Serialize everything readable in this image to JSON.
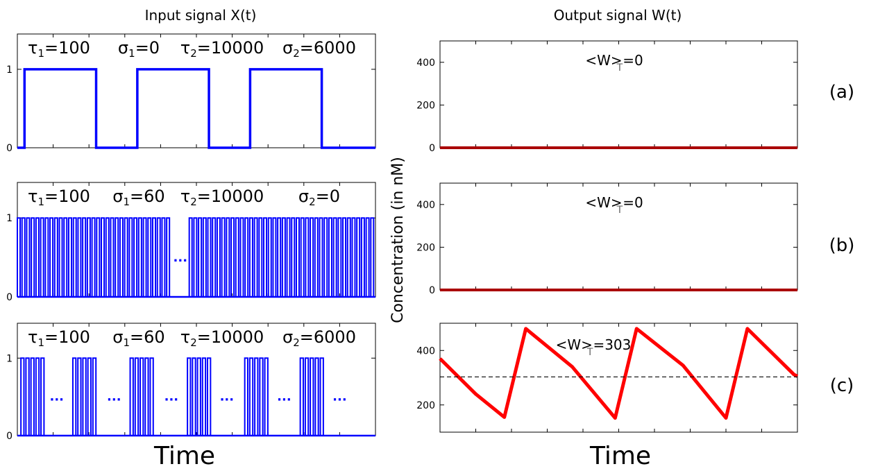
{
  "figure": {
    "left_title": "Input signal X(t)",
    "right_title": "Output signal W(t)",
    "left_xlabel": "Time",
    "right_xlabel": "Time",
    "right_ylabel": "Concentration (in nM)",
    "panel_labels": [
      "(a)",
      "(b)",
      "(c)"
    ],
    "ellipsis": "..."
  },
  "colors": {
    "input_line": "#0000ff",
    "output_flat": "#aa0000",
    "output_sawtooth": "#ff0000",
    "mean_line": "#000000"
  },
  "chart_data": [
    {
      "type": "line",
      "panel": "a",
      "side": "input",
      "params": [
        {
          "sym": "τ",
          "sub": "1",
          "val": "=100"
        },
        {
          "sym": "σ",
          "sub": "1",
          "val": "=0"
        },
        {
          "sym": "τ",
          "sub": "2",
          "val": "=10000"
        },
        {
          "sym": "σ",
          "sub": "2",
          "val": "=6000"
        }
      ],
      "yticks": [
        0,
        1
      ],
      "ylim": [
        0,
        1.45
      ],
      "series": [
        {
          "segments": [
            [
              0.0,
              0.02,
              0
            ],
            [
              0.02,
              0.22,
              1
            ],
            [
              0.22,
              0.335,
              0
            ],
            [
              0.335,
              0.535,
              1
            ],
            [
              0.535,
              0.65,
              0
            ],
            [
              0.65,
              0.85,
              1
            ],
            [
              0.85,
              1.0,
              0
            ]
          ]
        }
      ]
    },
    {
      "type": "line",
      "panel": "b",
      "side": "input",
      "params": [
        {
          "sym": "τ",
          "sub": "1",
          "val": "=100"
        },
        {
          "sym": "σ",
          "sub": "1",
          "val": "=60"
        },
        {
          "sym": "τ",
          "sub": "2",
          "val": "=10000"
        },
        {
          "sym": "σ",
          "sub": "2",
          "val": "=0"
        }
      ],
      "yticks": [
        0,
        1
      ],
      "ylim": [
        0,
        1.45
      ],
      "series": [
        {
          "trains": [
            [
              0.0,
              0.43
            ],
            [
              0.48,
              1.0
            ]
          ],
          "pulse_width_ratio": 0.6,
          "pulses_per_train": [
            33,
            40
          ]
        }
      ],
      "gaps": [
        0.455
      ]
    },
    {
      "type": "line",
      "panel": "c",
      "side": "input",
      "params": [
        {
          "sym": "τ",
          "sub": "1",
          "val": "=100"
        },
        {
          "sym": "σ",
          "sub": "1",
          "val": "=60"
        },
        {
          "sym": "τ",
          "sub": "2",
          "val": "=10000"
        },
        {
          "sym": "σ",
          "sub": "2",
          "val": "=6000"
        }
      ],
      "yticks": [
        0,
        1
      ],
      "ylim": [
        0,
        1.45
      ],
      "series": [
        {
          "trains": [
            [
              0.01,
              0.08
            ],
            [
              0.155,
              0.225
            ],
            [
              0.315,
              0.385
            ],
            [
              0.475,
              0.545
            ],
            [
              0.635,
              0.705
            ],
            [
              0.79,
              0.86
            ]
          ],
          "pulse_width_ratio": 0.6,
          "pulses_per_train": [
            5,
            5,
            5,
            5,
            5,
            5
          ]
        }
      ],
      "gaps": [
        0.11,
        0.27,
        0.43,
        0.585,
        0.745,
        0.9
      ]
    },
    {
      "type": "line",
      "panel": "a",
      "side": "output",
      "annotation": {
        "pre": "<W>",
        "sub": "T",
        "post": "=0"
      },
      "yticks": [
        0,
        200,
        400
      ],
      "ylim": [
        0,
        500
      ],
      "series": [
        {
          "x": [
            0,
            1
          ],
          "y": [
            0,
            0
          ]
        }
      ]
    },
    {
      "type": "line",
      "panel": "b",
      "side": "output",
      "annotation": {
        "pre": "<W>",
        "sub": "T",
        "post": "=0"
      },
      "yticks": [
        0,
        200,
        400
      ],
      "ylim": [
        0,
        500
      ],
      "series": [
        {
          "x": [
            0,
            1
          ],
          "y": [
            0,
            0
          ]
        }
      ]
    },
    {
      "type": "line",
      "panel": "c",
      "side": "output",
      "annotation": {
        "pre": "<W>",
        "sub": "T",
        "post": "=303"
      },
      "yticks": [
        200,
        400
      ],
      "ylim": [
        100,
        500
      ],
      "mean": 303,
      "series": [
        {
          "x": [
            0.0,
            0.1,
            0.18,
            0.24,
            0.37,
            0.49,
            0.55,
            0.68,
            0.8,
            0.86,
            0.99,
            1.0
          ],
          "y": [
            370,
            240,
            155,
            480,
            340,
            152,
            480,
            345,
            152,
            480,
            312,
            305
          ]
        }
      ]
    }
  ]
}
